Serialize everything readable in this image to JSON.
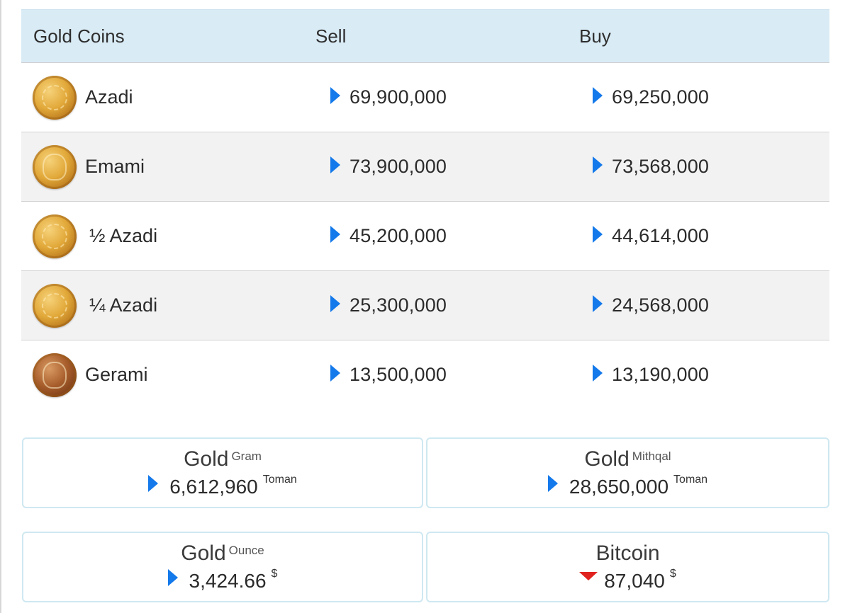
{
  "table": {
    "headers": {
      "name": "Gold Coins",
      "sell": "Sell",
      "buy": "Buy"
    },
    "rows": [
      {
        "name": "Azadi",
        "sell": "69,900,000",
        "buy": "69,250,000",
        "coin_icon": "azadi-coin-icon"
      },
      {
        "name": "Emami",
        "sell": "73,900,000",
        "buy": "73,568,000",
        "coin_icon": "emami-coin-icon"
      },
      {
        "name": "½ Azadi",
        "sell": "45,200,000",
        "buy": "44,614,000",
        "coin_icon": "half-azadi-coin-icon"
      },
      {
        "name": "¼ Azadi",
        "sell": "25,300,000",
        "buy": "24,568,000",
        "coin_icon": "quarter-azadi-coin-icon"
      },
      {
        "name": "Gerami",
        "sell": "13,500,000",
        "buy": "13,190,000",
        "coin_icon": "gerami-coin-icon"
      }
    ]
  },
  "cards": {
    "gold_gram": {
      "title": "Gold",
      "sub": "Gram",
      "value": "6,612,960",
      "unit": "Toman",
      "trend": "up"
    },
    "gold_mithqal": {
      "title": "Gold",
      "sub": "Mithqal",
      "value": "28,650,000",
      "unit": "Toman",
      "trend": "up"
    },
    "gold_ounce": {
      "title": "Gold",
      "sub": "Ounce",
      "value": "3,424.66",
      "unit": "$",
      "trend": "up"
    },
    "bitcoin": {
      "title": "Bitcoin",
      "sub": "",
      "value": "87,040",
      "unit": "$",
      "trend": "down"
    }
  },
  "colors": {
    "header_bg": "#d9ebf5",
    "alt_row_bg": "#f2f2f2",
    "trend_up": "#1479ea",
    "trend_down": "#e0231f",
    "card_border": "#cfe8f1"
  }
}
